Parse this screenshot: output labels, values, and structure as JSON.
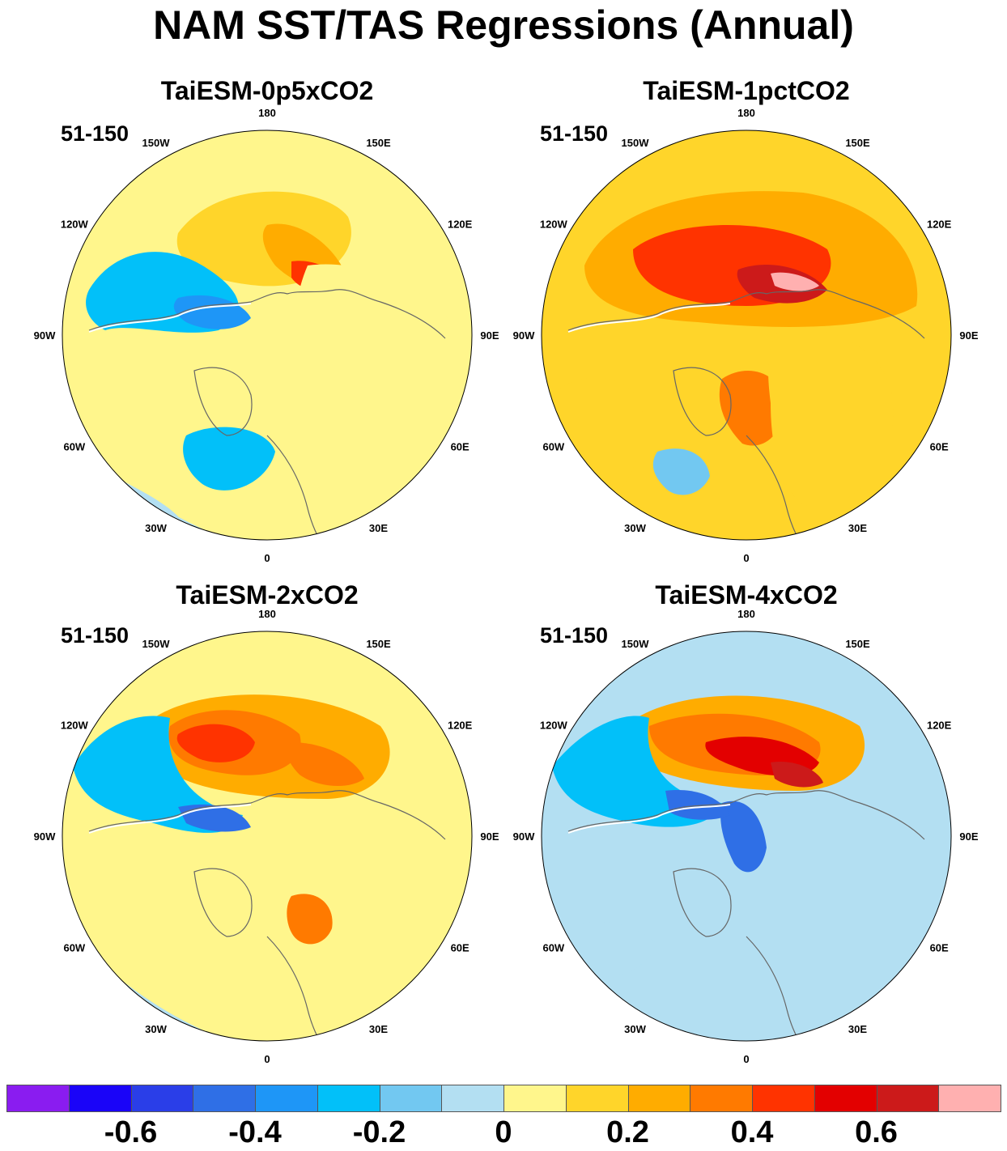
{
  "figure_title": "NAM SST/TAS Regressions (Annual)",
  "longitude_labels": {
    "north": "180",
    "ne_far": "150E",
    "ne_near": "120E",
    "east": "90E",
    "se_near": "60E",
    "se_far": "30E",
    "south": "0",
    "sw_far": "30W",
    "sw_near": "60W",
    "west": "90W",
    "nw_near": "120W",
    "nw_far": "150W"
  },
  "panels": [
    {
      "title": "TaiESM-0p5xCO2",
      "period": "51-150"
    },
    {
      "title": "TaiESM-1pctCO2",
      "period": "51-150"
    },
    {
      "title": "TaiESM-2xCO2",
      "period": "51-150"
    },
    {
      "title": "TaiESM-4xCO2",
      "period": "51-150"
    }
  ],
  "colorbar": {
    "colors": [
      "#8a1cf0",
      "#1a04f8",
      "#2a3ee8",
      "#2f6fe6",
      "#1e96f7",
      "#02c0f9",
      "#72c8f1",
      "#b3dff2",
      "#fff68c",
      "#ffd52a",
      "#ffac00",
      "#ff7a00",
      "#ff3300",
      "#e30000",
      "#cc1a1a",
      "#ffb0b0"
    ],
    "labels": [
      "-0.6",
      "-0.4",
      "-0.2",
      "0",
      "0.2",
      "0.4",
      "0.6"
    ]
  },
  "chart_data": {
    "type": "heatmap",
    "projection": "north polar stereographic",
    "variable": "SST/TAS regression on NAM index",
    "color_levels": [
      -0.7,
      -0.6,
      -0.5,
      -0.4,
      -0.3,
      -0.2,
      -0.1,
      0,
      0.1,
      0.2,
      0.3,
      0.4,
      0.5,
      0.6,
      0.7
    ],
    "panels": [
      {
        "name": "TaiESM-0p5xCO2",
        "features": [
          {
            "region": "North Pacific / Bering Sea",
            "value": 0.5
          },
          {
            "region": "Eastern Siberia coast",
            "value": 0.3
          },
          {
            "region": "Gulf of Alaska",
            "value": -0.4
          },
          {
            "region": "Labrador Sea / Greenland",
            "value": -0.3
          },
          {
            "region": "Eurasia interior",
            "value": 0.05
          },
          {
            "region": "Subtropical North Atlantic",
            "value": 0.05
          }
        ]
      },
      {
        "name": "TaiESM-1pctCO2",
        "features": [
          {
            "region": "North Pacific / Bering Sea",
            "value": 0.7
          },
          {
            "region": "North Pacific basin",
            "value": 0.5
          },
          {
            "region": "Barents Sea",
            "value": 0.5
          },
          {
            "region": "Subpolar North Atlantic",
            "value": -0.05
          },
          {
            "region": "Eurasia interior",
            "value": 0.1
          },
          {
            "region": "Subtropical North Atlantic",
            "value": 0.15
          }
        ]
      },
      {
        "name": "TaiESM-2xCO2",
        "features": [
          {
            "region": "North Pacific (central)",
            "value": 0.45
          },
          {
            "region": "Bering Sea",
            "value": 0.4
          },
          {
            "region": "Gulf of Alaska",
            "value": -0.4
          },
          {
            "region": "Barents Sea",
            "value": 0.3
          },
          {
            "region": "Eurasia interior",
            "value": 0.05
          },
          {
            "region": "North Atlantic",
            "value": -0.05
          }
        ]
      },
      {
        "name": "TaiESM-4xCO2",
        "features": [
          {
            "region": "North Pacific (central)",
            "value": 0.5
          },
          {
            "region": "Bering Sea",
            "value": 0.6
          },
          {
            "region": "Gulf of Alaska",
            "value": -0.4
          },
          {
            "region": "Canadian Arctic / Beaufort",
            "value": -0.5
          },
          {
            "region": "Eurasia interior",
            "value": -0.05
          },
          {
            "region": "North Atlantic",
            "value": -0.05
          }
        ]
      }
    ]
  }
}
